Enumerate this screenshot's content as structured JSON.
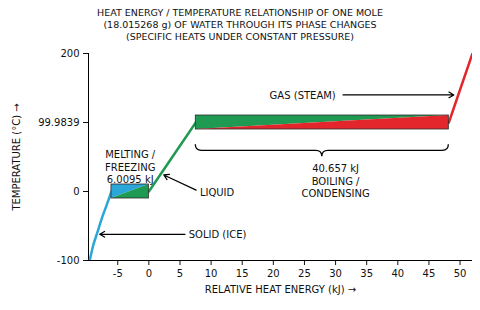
{
  "chart_data": {
    "type": "line",
    "title": "HEAT ENERGY / TEMPERATURE RELATIONSHIP OF ONE MOLE\n(18.015268 g) OF WATER THROUGH ITS PHASE CHANGES\n(SPECIFIC HEATS UNDER CONSTANT PRESSURE)",
    "x_label": "RELATIVE HEAT ENERGY (kJ)",
    "y_label": "TEMPERATURE (°C)",
    "xlim": [
      -9.7,
      52
    ],
    "xticks": [
      -5,
      0,
      5,
      10,
      15,
      20,
      25,
      30,
      35,
      40,
      45,
      50
    ],
    "ylim": [
      -100,
      200
    ],
    "yticks": [
      -100,
      0,
      99.9839,
      200
    ],
    "grid": false,
    "series": [
      {
        "color": "#2aa6d8",
        "x": [
          -9.5,
          -9.0,
          -8.3,
          -7.6,
          -6.8,
          -6.0095
        ],
        "values": [
          -100,
          -80,
          -60,
          -40,
          -20,
          0
        ]
      },
      {
        "color": "#1f9a52",
        "x": [
          0,
          7.54
        ],
        "values": [
          0,
          99.9839
        ]
      },
      {
        "color": "#e3262b",
        "x": [
          48.197,
          52
        ],
        "values": [
          99.9839,
          200
        ]
      }
    ],
    "bands": [
      {
        "x1": -6.0095,
        "x2": 0,
        "y": 0,
        "colors": [
          "#2aa6d8",
          "#1f9a52"
        ]
      },
      {
        "x1": 7.54,
        "x2": 48.197,
        "y": 99.9839,
        "colors": [
          "#1f9a52",
          "#e3262b"
        ]
      }
    ],
    "annotations": [
      {
        "text": "MELTING /\nFREEZING\n6.0095 kJ",
        "x": -3,
        "y": 36
      },
      {
        "text": "LIQUID",
        "x": 8.2,
        "y": 0,
        "arrow": {
          "x1": 7.6,
          "y1": 2,
          "x2": 2.4,
          "y2": 24
        }
      },
      {
        "text": "SOLID (ICE)",
        "x": 6.4,
        "y": -62,
        "arrow": {
          "x1": 5.8,
          "y1": -62,
          "x2": -7.9,
          "y2": -62
        }
      },
      {
        "text": "GAS (STEAM)",
        "x": 19.4,
        "y": 140,
        "arrow": {
          "x1": 31.2,
          "y1": 140,
          "x2": 49.0,
          "y2": 140
        }
      },
      {
        "text": "40.657 kJ\nBOILING /\nCONDENSING",
        "x": 30,
        "y": 15.5,
        "brace": [
          7.54,
          48.197
        ]
      }
    ]
  }
}
